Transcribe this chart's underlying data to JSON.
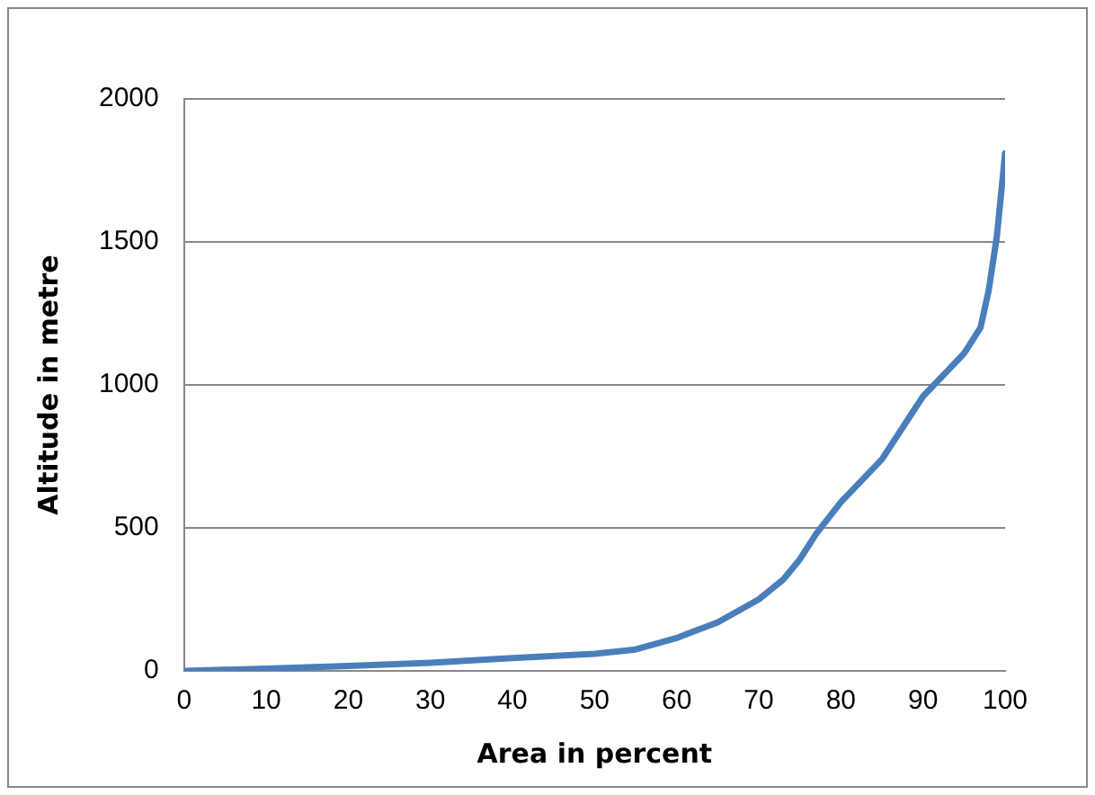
{
  "chart_data": {
    "type": "line",
    "xlabel": "Area in percent",
    "ylabel": "Altitude in metre",
    "x": [
      0,
      10,
      20,
      30,
      40,
      50,
      55,
      60,
      65,
      70,
      73,
      75,
      77,
      80,
      85,
      90,
      93,
      95,
      97,
      98,
      99,
      100
    ],
    "series": [
      {
        "color": "#4a7ebb",
        "values": [
          0,
          8,
          17,
          28,
          45,
          60,
          75,
          115,
          170,
          250,
          320,
          390,
          480,
          590,
          740,
          960,
          1050,
          1110,
          1200,
          1330,
          1520,
          1810
        ]
      }
    ],
    "xlim": [
      0,
      100
    ],
    "xticks": [
      0,
      10,
      20,
      30,
      40,
      50,
      60,
      70,
      80,
      90,
      100
    ],
    "ylim": [
      0,
      2000
    ],
    "yticks": [
      0,
      500,
      1000,
      1500,
      2000
    ],
    "grid": "y",
    "legend": false,
    "marker": "none",
    "line_style": "solid"
  }
}
